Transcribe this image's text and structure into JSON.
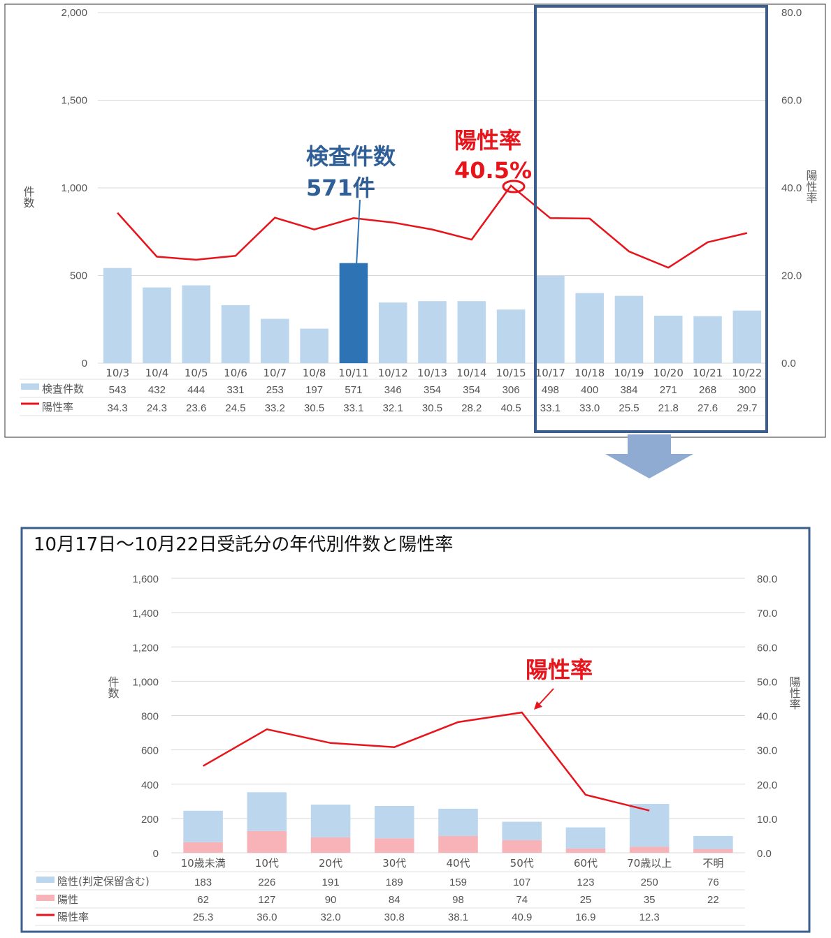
{
  "colors": {
    "bar_light": "#bcd6ee",
    "bar_highlight": "#2e74b5",
    "bar_positive": "#f7b3b8",
    "line": "#e8141b",
    "frame": "#3a5f8f",
    "arrow": "#8fabd1",
    "annotation_blue": "#2f5f96",
    "annotation_red": "#e8141b"
  },
  "chart_data": [
    {
      "type": "bar",
      "categories": [
        "10/3",
        "10/4",
        "10/5",
        "10/6",
        "10/7",
        "10/8",
        "10/11",
        "10/12",
        "10/13",
        "10/14",
        "10/15",
        "10/17",
        "10/18",
        "10/19",
        "10/20",
        "10/21",
        "10/22"
      ],
      "series": [
        {
          "name": "検査件数",
          "type": "bar",
          "axis": "left",
          "values": [
            543,
            432,
            444,
            331,
            253,
            197,
            571,
            346,
            354,
            354,
            306,
            498,
            400,
            384,
            271,
            268,
            300
          ]
        },
        {
          "name": "陽性率",
          "type": "line",
          "axis": "right",
          "values": [
            34.3,
            24.3,
            23.6,
            24.5,
            33.2,
            30.5,
            33.1,
            32.1,
            30.5,
            28.2,
            40.5,
            33.1,
            33.0,
            25.5,
            21.8,
            27.6,
            29.7
          ]
        }
      ],
      "highlight_index": 6,
      "ylabel": "件数",
      "y2label": "陽性率",
      "ylim": [
        0,
        2000
      ],
      "y2lim": [
        0,
        80
      ],
      "yticks": [
        "0",
        "500",
        "1,000",
        "1,500",
        "2,000"
      ],
      "y2ticks": [
        "0.0",
        "20.0",
        "40.0",
        "60.0",
        "80.0"
      ],
      "grid": true,
      "table_values": {
        "count": [
          "543",
          "432",
          "444",
          "331",
          "253",
          "197",
          "571",
          "346",
          "354",
          "354",
          "306",
          "498",
          "400",
          "384",
          "271",
          "268",
          "300"
        ],
        "rate": [
          "34.3",
          "24.3",
          "23.6",
          "24.5",
          "33.2",
          "30.5",
          "33.1",
          "32.1",
          "30.5",
          "28.2",
          "40.5",
          "33.1",
          "33.0",
          "25.5",
          "21.8",
          "27.6",
          "29.7"
        ]
      },
      "annotations": {
        "count_title": "検査件数",
        "count_value": "571件",
        "rate_title": "陽性率",
        "rate_value": "40.5%"
      }
    },
    {
      "type": "bar",
      "title": "10月17日～10月22日受託分の年代別件数と陽性率",
      "categories": [
        "10歳未満",
        "10代",
        "20代",
        "30代",
        "40代",
        "50代",
        "60代",
        "70歳以上",
        "不明"
      ],
      "series": [
        {
          "name": "陰性(判定保留含む)",
          "type": "stacked-bar",
          "axis": "left",
          "values": [
            183,
            226,
            191,
            189,
            159,
            107,
            123,
            250,
            76
          ]
        },
        {
          "name": "陽性",
          "type": "stacked-bar",
          "axis": "left",
          "values": [
            62,
            127,
            90,
            84,
            98,
            74,
            25,
            35,
            22
          ]
        },
        {
          "name": "陽性率",
          "type": "line",
          "axis": "right",
          "values": [
            25.3,
            36.0,
            32.0,
            30.8,
            38.1,
            40.9,
            16.9,
            12.3,
            null
          ]
        }
      ],
      "ylabel": "件数",
      "y2label": "陽性率",
      "ylim": [
        0,
        1600
      ],
      "y2lim": [
        0,
        80
      ],
      "yticks": [
        "0",
        "200",
        "400",
        "600",
        "800",
        "1,000",
        "1,200",
        "1,400",
        "1,600"
      ],
      "y2ticks": [
        "0.0",
        "10.0",
        "20.0",
        "30.0",
        "40.0",
        "50.0",
        "60.0",
        "70.0",
        "80.0"
      ],
      "grid": true,
      "table_values": {
        "negative": [
          "183",
          "226",
          "191",
          "189",
          "159",
          "107",
          "123",
          "250",
          "76"
        ],
        "positive": [
          "62",
          "127",
          "90",
          "84",
          "98",
          "74",
          "25",
          "35",
          "22"
        ],
        "rate": [
          "25.3",
          "36.0",
          "32.0",
          "30.8",
          "38.1",
          "40.9",
          "16.9",
          "12.3",
          ""
        ]
      },
      "annotations": {
        "rate_title": "陽性率"
      }
    }
  ]
}
